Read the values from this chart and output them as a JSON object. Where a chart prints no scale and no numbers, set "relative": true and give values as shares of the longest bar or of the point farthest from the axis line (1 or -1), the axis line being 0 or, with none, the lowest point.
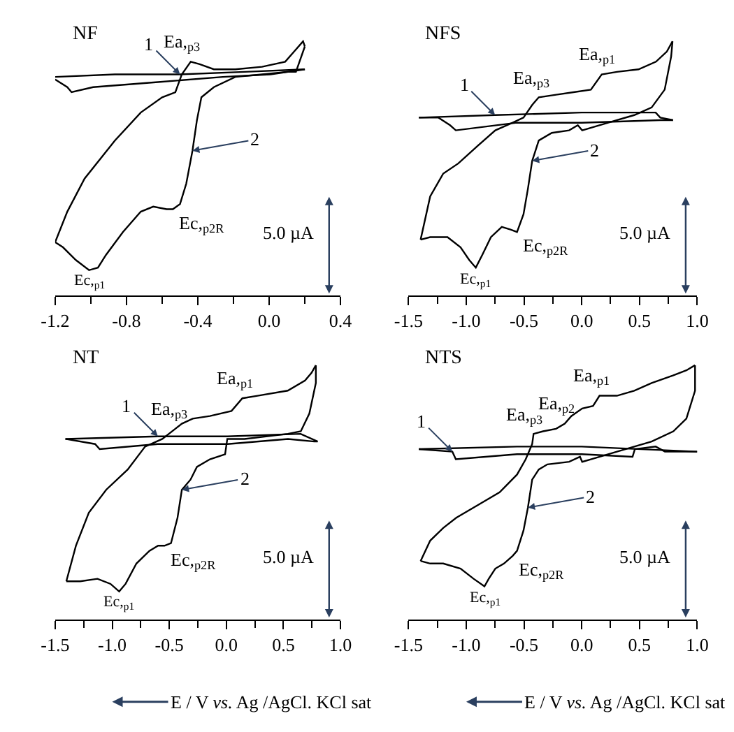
{
  "chart_data": [
    {
      "type": "line",
      "title": "NF",
      "relative": true,
      "xlim": [
        -1.2,
        0.4
      ],
      "xticks": [
        -1.2,
        {
          "value": -1.0,
          "label": null
        },
        -0.8,
        {
          "value": -0.6,
          "label": null
        },
        -0.4,
        {
          "value": -0.2,
          "label": null
        },
        {
          "value": 0,
          "label": "0.0"
        },
        {
          "value": 0.2,
          "label": null
        },
        0.4
      ],
      "series": [
        {
          "color": "#000000",
          "x": [
            -1.2,
            -0.865,
            -0.5,
            -0.138,
            0.2
          ],
          "values": [
            0.86,
            0.87,
            0.87,
            0.88,
            0.89
          ]
        },
        {
          "color": "#000000",
          "x": [
            0.2,
            0.007,
            -0.26,
            -0.623,
            -0.987,
            -1.108,
            -1.132,
            -1.2
          ],
          "values": [
            0.89,
            0.87,
            0.86,
            0.84,
            0.82,
            0.8,
            0.82,
            0.85
          ]
        },
        {
          "color": "#000000",
          "x": [
            -1.2,
            -1.132,
            -1.035,
            -0.865,
            -0.72,
            -0.6,
            -0.526,
            -0.49,
            -0.44,
            -0.39,
            -0.31,
            -0.19,
            -0.04,
            0.09,
            0.14,
            0.19,
            0.2
          ],
          "values": [
            0.21,
            0.33,
            0.46,
            0.61,
            0.72,
            0.78,
            0.8,
            0.87,
            0.92,
            0.91,
            0.89,
            0.89,
            0.9,
            0.92,
            0.96,
            1.0,
            0.98
          ]
        },
        {
          "color": "#000000",
          "x": [
            0.2,
            0.15,
            0.1,
            -0.04,
            -0.19,
            -0.31,
            -0.38,
            -0.405,
            -0.43,
            -0.465,
            -0.5,
            -0.54,
            -0.575,
            -0.65,
            -0.72,
            -0.82,
            -0.915,
            -0.96,
            -1.01,
            -1.084,
            -1.156,
            -1.2
          ],
          "values": [
            0.98,
            0.88,
            0.88,
            0.87,
            0.86,
            0.82,
            0.78,
            0.69,
            0.57,
            0.44,
            0.36,
            0.34,
            0.34,
            0.35,
            0.33,
            0.25,
            0.16,
            0.11,
            0.1,
            0.14,
            0.19,
            0.21
          ]
        }
      ],
      "annotations": [
        {
          "text": "1",
          "x": -0.5,
          "y": 0.87
        },
        {
          "text": "2",
          "x": -0.43,
          "y": 0.57
        },
        {
          "text": "Ea,$_{p3}$",
          "x": -0.44,
          "y": 0.92
        },
        {
          "text": "Ec,$_{p2R}$",
          "x": -0.54,
          "y": 0.34
        },
        {
          "text": "Ec,$_{p1}$",
          "x": -1.01,
          "y": 0.1
        },
        "5.0 µA"
      ]
    },
    {
      "type": "line",
      "title": "NFS",
      "relative": true,
      "xlim": [
        -1.5,
        1.0
      ],
      "xticks": [
        -1.5,
        {
          "value": -1.25,
          "label": null
        },
        {
          "value": -1.0,
          "label": "-1.0"
        },
        {
          "value": -0.75,
          "label": null
        },
        -0.5,
        {
          "value": -0.25,
          "label": null
        },
        {
          "value": 0,
          "label": "0.0"
        },
        {
          "value": 0.25,
          "label": null
        },
        0.5,
        {
          "value": 0.75,
          "label": null
        },
        {
          "value": 1.0,
          "label": "1.0"
        }
      ],
      "series": [
        {
          "color": "#000000",
          "x": [
            -1.41,
            -0.75,
            0.0,
            0.64,
            0.68,
            0.79
          ],
          "values": [
            0.7,
            0.71,
            0.72,
            0.72,
            0.7,
            0.69
          ]
        },
        {
          "color": "#000000",
          "x": [
            0.79,
            0.68,
            0.0,
            -0.56,
            -1.09,
            -1.14,
            -1.24,
            -1.41
          ],
          "values": [
            0.69,
            0.69,
            0.68,
            0.68,
            0.65,
            0.67,
            0.7,
            0.7
          ]
        },
        {
          "color": "#000000",
          "x": [
            -1.395,
            -1.312,
            -1.199,
            -1.068,
            -0.898,
            -0.748,
            -0.598,
            -0.504,
            -0.429,
            -0.372,
            -0.222,
            -0.071,
            0.079,
            0.173,
            0.305,
            0.492,
            0.643,
            0.737,
            0.786
          ],
          "values": [
            0.22,
            0.39,
            0.48,
            0.52,
            0.59,
            0.65,
            0.68,
            0.7,
            0.75,
            0.78,
            0.79,
            0.8,
            0.81,
            0.87,
            0.88,
            0.89,
            0.92,
            0.96,
            1.0
          ]
        },
        {
          "color": "#000000",
          "x": [
            0.786,
            0.774,
            0.718,
            0.605,
            0.455,
            0.229,
            0.004,
            -0.034,
            -0.109,
            -0.259,
            -0.372,
            -0.429,
            -0.466,
            -0.504,
            -0.56,
            -0.617,
            -0.692,
            -0.786,
            -0.861,
            -0.917,
            -0.974,
            -1.049,
            -1.162,
            -1.312,
            -1.395
          ],
          "values": [
            1.0,
            0.94,
            0.81,
            0.74,
            0.71,
            0.68,
            0.65,
            0.67,
            0.65,
            0.64,
            0.61,
            0.53,
            0.42,
            0.32,
            0.25,
            0.26,
            0.27,
            0.23,
            0.16,
            0.11,
            0.14,
            0.19,
            0.23,
            0.23,
            0.22
          ]
        }
      ],
      "annotations": [
        {
          "text": "1",
          "x": -0.75,
          "y": 0.71
        },
        {
          "text": "2",
          "x": -0.429,
          "y": 0.53
        },
        {
          "text": "Ea,$_{p3}$",
          "x": -0.37,
          "y": 0.78
        },
        {
          "text": "Ea,$_{p1}$",
          "x": 0.19,
          "y": 0.87
        },
        {
          "text": "Ec,$_{p2R}$",
          "x": -0.56,
          "y": 0.25
        },
        {
          "text": "Ec,$_{p1}$",
          "x": -0.92,
          "y": 0.11
        },
        "5.0 µA"
      ]
    },
    {
      "type": "line",
      "title": "NT",
      "relative": true,
      "xlim": [
        -1.5,
        1.0
      ],
      "xlabel": "E / V vs. Ag /AgCl. KCl sat",
      "xticks": [
        -1.5,
        {
          "value": -1.25,
          "label": null
        },
        {
          "value": -1.0,
          "label": "-1.0"
        },
        {
          "value": -0.75,
          "label": null
        },
        -0.5,
        {
          "value": -0.25,
          "label": null
        },
        {
          "value": 0,
          "label": "0.0"
        },
        {
          "value": 0.25,
          "label": null
        },
        0.5,
        {
          "value": 0.75,
          "label": null
        },
        {
          "value": 1.0,
          "label": "1.0"
        }
      ],
      "series": [
        {
          "color": "#000000",
          "x": [
            -1.41,
            -0.6,
            0.01,
            0.65,
            0.8
          ],
          "values": [
            0.71,
            0.72,
            0.72,
            0.73,
            0.7
          ]
        },
        {
          "color": "#000000",
          "x": [
            0.8,
            0.77,
            0.54,
            0.01,
            -0.6,
            -1.11,
            -1.15,
            -1.41
          ],
          "values": [
            0.7,
            0.7,
            0.71,
            0.69,
            0.69,
            0.67,
            0.69,
            0.71
          ]
        },
        {
          "color": "#000000",
          "x": [
            -1.402,
            -1.318,
            -1.205,
            -1.053,
            -0.864,
            -0.712,
            -0.561,
            -0.447,
            -0.39,
            -0.295,
            -0.144,
            0.045,
            0.14,
            0.273,
            0.538,
            0.689,
            0.746,
            0.784
          ],
          "values": [
            0.15,
            0.29,
            0.42,
            0.51,
            0.59,
            0.68,
            0.71,
            0.75,
            0.77,
            0.79,
            0.8,
            0.82,
            0.87,
            0.88,
            0.9,
            0.94,
            0.97,
            1.0
          ]
        },
        {
          "color": "#000000",
          "x": [
            0.784,
            0.784,
            0.727,
            0.652,
            0.538,
            0.159,
            0.008,
            -0.011,
            -0.144,
            -0.258,
            -0.314,
            -0.39,
            -0.428,
            -0.485,
            -0.542,
            -0.598,
            -0.674,
            -0.788,
            -0.883,
            -0.939,
            -1.015,
            -1.129,
            -1.28,
            -1.402
          ],
          "values": [
            1.0,
            0.93,
            0.81,
            0.74,
            0.73,
            0.71,
            0.71,
            0.65,
            0.63,
            0.6,
            0.55,
            0.51,
            0.4,
            0.3,
            0.29,
            0.29,
            0.27,
            0.22,
            0.14,
            0.11,
            0.14,
            0.16,
            0.15,
            0.15
          ]
        }
      ],
      "annotations": [
        {
          "text": "1",
          "x": -0.6,
          "y": 0.72
        },
        {
          "text": "2",
          "x": -0.39,
          "y": 0.51
        },
        {
          "text": "Ea,$_{p3}$",
          "x": -0.43,
          "y": 0.75
        },
        {
          "text": "Ea,$_{p1}$",
          "x": 0.14,
          "y": 0.87
        },
        {
          "text": "Ec,$_{p2R}$",
          "x": -0.54,
          "y": 0.29
        },
        {
          "text": "Ec,$_{p1}$",
          "x": -0.94,
          "y": 0.11
        },
        "5.0 µA"
      ]
    },
    {
      "type": "line",
      "title": "NTS",
      "relative": true,
      "xlim": [
        -1.5,
        1.0
      ],
      "xlabel": "E / V vs. Ag /AgCl. KCl sat",
      "xticks": [
        -1.5,
        {
          "value": -1.25,
          "label": null
        },
        {
          "value": -1.0,
          "label": "-1.0"
        },
        {
          "value": -0.75,
          "label": null
        },
        -0.5,
        {
          "value": -0.25,
          "label": null
        },
        {
          "value": 0,
          "label": "0.0"
        },
        {
          "value": 0.25,
          "label": null
        },
        0.5,
        {
          "value": 0.75,
          "label": null
        },
        {
          "value": 1.0,
          "label": "1.0"
        }
      ],
      "series": [
        {
          "color": "#000000",
          "x": [
            -1.41,
            -0.56,
            0.0,
            1.0
          ],
          "values": [
            0.67,
            0.68,
            0.68,
            0.66
          ]
        },
        {
          "color": "#000000",
          "x": [
            1.0,
            0.72,
            0.64,
            0.46,
            0.44,
            0.0,
            -0.56,
            -1.09,
            -1.12,
            -1.41
          ],
          "values": [
            0.66,
            0.66,
            0.68,
            0.67,
            0.64,
            0.65,
            0.65,
            0.63,
            0.66,
            0.67
          ]
        },
        {
          "color": "#000000",
          "x": [
            -1.395,
            -1.312,
            -1.199,
            -1.086,
            -0.898,
            -0.711,
            -0.56,
            -0.485,
            -0.429,
            -0.417,
            -0.335,
            -0.222,
            -0.147,
            -0.09,
            0.004,
            0.098,
            0.154,
            0.305,
            0.455,
            0.605,
            0.793,
            0.906,
            0.981
          ],
          "values": [
            0.23,
            0.31,
            0.36,
            0.4,
            0.45,
            0.5,
            0.57,
            0.63,
            0.69,
            0.73,
            0.74,
            0.75,
            0.77,
            0.8,
            0.83,
            0.84,
            0.88,
            0.88,
            0.9,
            0.93,
            0.96,
            0.98,
            1.0
          ]
        },
        {
          "color": "#000000",
          "x": [
            0.981,
            0.981,
            0.906,
            0.793,
            0.605,
            0.305,
            0.079,
            0.004,
            -0.015,
            -0.109,
            -0.297,
            -0.372,
            -0.429,
            -0.466,
            -0.504,
            -0.56,
            -0.598,
            -0.673,
            -0.748,
            -0.805,
            -0.842,
            -0.936,
            -1.049,
            -1.199,
            -1.312,
            -1.395
          ],
          "values": [
            1.0,
            0.9,
            0.79,
            0.74,
            0.7,
            0.66,
            0.63,
            0.62,
            0.64,
            0.62,
            0.61,
            0.59,
            0.55,
            0.44,
            0.35,
            0.27,
            0.25,
            0.22,
            0.2,
            0.16,
            0.13,
            0.16,
            0.2,
            0.22,
            0.22,
            0.23
          ]
        }
      ],
      "annotations": [
        {
          "text": "1",
          "x": -1.12,
          "y": 0.66
        },
        {
          "text": "2",
          "x": -0.466,
          "y": 0.44
        },
        {
          "text": "Ea,$_{p3}$",
          "x": -0.42,
          "y": 0.73
        },
        {
          "text": "Ea,$_{p2}$",
          "x": -0.15,
          "y": 0.77
        },
        {
          "text": "Ea,$_{p1}$",
          "x": 0.15,
          "y": 0.88
        },
        {
          "text": "Ec,$_{p2R}$",
          "x": -0.6,
          "y": 0.25
        },
        {
          "text": "Ec,$_{p1}$",
          "x": -0.84,
          "y": 0.13
        },
        "5.0 µA"
      ]
    }
  ]
}
